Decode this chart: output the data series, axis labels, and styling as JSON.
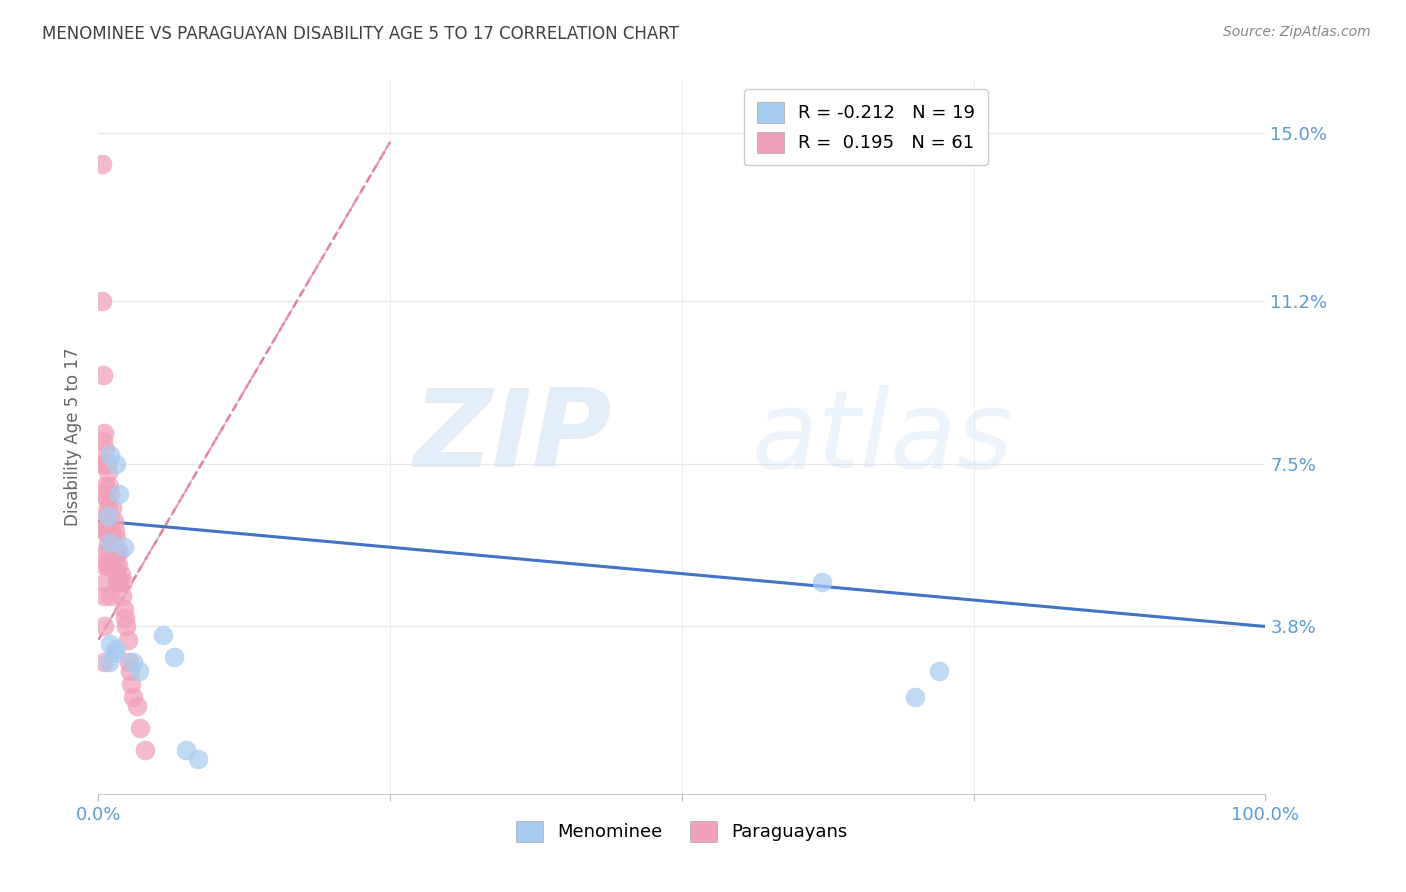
{
  "title": "MENOMINEE VS PARAGUAYAN DISABILITY AGE 5 TO 17 CORRELATION CHART",
  "source": "Source: ZipAtlas.com",
  "ylabel": "Disability Age 5 to 17",
  "xlim": [
    0.0,
    1.0
  ],
  "ylim": [
    0.0,
    0.162
  ],
  "ytick_labels": [
    "3.8%",
    "7.5%",
    "11.2%",
    "15.0%"
  ],
  "ytick_values": [
    0.038,
    0.075,
    0.112,
    0.15
  ],
  "xtick_positions": [
    0.0,
    0.25,
    0.5,
    0.75,
    1.0
  ],
  "xtick_labels": [
    "0.0%",
    "",
    "",
    "",
    "100.0%"
  ],
  "legend_blue_r": "R = -0.212",
  "legend_blue_n": "N = 19",
  "legend_pink_r": "R =  0.195",
  "legend_pink_n": "N = 61",
  "legend_bottom_blue": "Menominee",
  "legend_bottom_pink": "Paraguayans",
  "blue_color": "#a8ccf0",
  "pink_color": "#f0a0b8",
  "trend_blue_color": "#4472c4",
  "trend_pink_color": "#e07090",
  "trend_pink_dash_color": "#e0a0b0",
  "axis_label_color": "#5b9bd5",
  "title_color": "#404040",
  "background_color": "#ffffff",
  "grid_color": "#e8e8e8",
  "menominee_x": [
    0.008,
    0.01,
    0.015,
    0.018,
    0.01,
    0.009,
    0.014,
    0.01,
    0.022,
    0.015,
    0.055,
    0.065,
    0.62,
    0.72,
    0.7,
    0.075,
    0.085,
    0.03,
    0.035
  ],
  "menominee_y": [
    0.063,
    0.077,
    0.075,
    0.068,
    0.057,
    0.03,
    0.032,
    0.034,
    0.056,
    0.033,
    0.036,
    0.031,
    0.048,
    0.028,
    0.022,
    0.01,
    0.008,
    0.03,
    0.028
  ],
  "paraguayan_x": [
    0.003,
    0.003,
    0.004,
    0.004,
    0.004,
    0.004,
    0.005,
    0.005,
    0.005,
    0.005,
    0.005,
    0.005,
    0.005,
    0.005,
    0.006,
    0.006,
    0.006,
    0.006,
    0.006,
    0.007,
    0.007,
    0.007,
    0.007,
    0.008,
    0.008,
    0.008,
    0.009,
    0.009,
    0.009,
    0.01,
    0.01,
    0.01,
    0.01,
    0.011,
    0.012,
    0.012,
    0.013,
    0.013,
    0.014,
    0.014,
    0.015,
    0.015,
    0.016,
    0.016,
    0.017,
    0.018,
    0.018,
    0.019,
    0.02,
    0.021,
    0.022,
    0.023,
    0.024,
    0.025,
    0.026,
    0.027,
    0.028,
    0.03,
    0.033,
    0.036,
    0.04
  ],
  "paraguayan_y": [
    0.143,
    0.112,
    0.095,
    0.08,
    0.075,
    0.06,
    0.082,
    0.075,
    0.068,
    0.06,
    0.052,
    0.045,
    0.038,
    0.03,
    0.078,
    0.07,
    0.063,
    0.055,
    0.048,
    0.075,
    0.067,
    0.06,
    0.052,
    0.073,
    0.065,
    0.057,
    0.07,
    0.063,
    0.055,
    0.068,
    0.06,
    0.052,
    0.045,
    0.058,
    0.065,
    0.057,
    0.062,
    0.055,
    0.06,
    0.052,
    0.058,
    0.05,
    0.055,
    0.048,
    0.052,
    0.055,
    0.048,
    0.05,
    0.045,
    0.048,
    0.042,
    0.04,
    0.038,
    0.035,
    0.03,
    0.028,
    0.025,
    0.022,
    0.02,
    0.015,
    0.01
  ],
  "blue_trend_x": [
    0.0,
    1.0
  ],
  "blue_trend_y": [
    0.062,
    0.038
  ],
  "pink_trend_x": [
    0.0,
    0.25
  ],
  "pink_trend_y": [
    0.035,
    0.148
  ]
}
